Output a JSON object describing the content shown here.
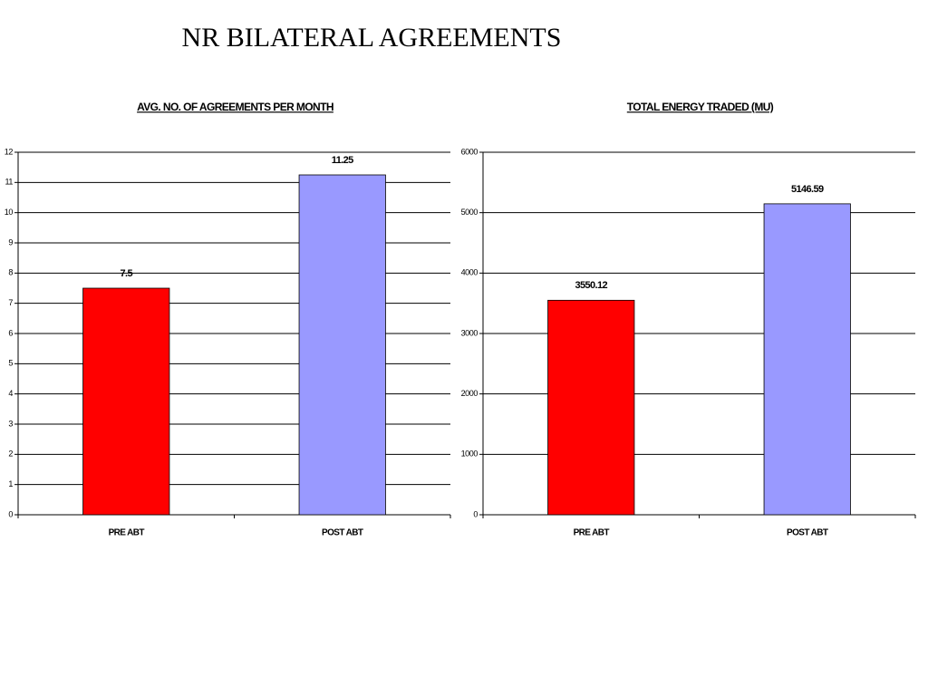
{
  "title": "NR BILATERAL AGREEMENTS",
  "chart_data": [
    {
      "type": "bar",
      "title": "AVG. NO. OF AGREEMENTS PER MONTH",
      "categories": [
        "PRE ABT",
        "POST ABT"
      ],
      "values": [
        7.5,
        11.25
      ],
      "colors": [
        "#ff0000",
        "#9999ff"
      ],
      "ylim": [
        0,
        12
      ],
      "yticks": [
        0,
        1,
        2,
        3,
        4,
        5,
        6,
        7,
        8,
        9,
        10,
        11,
        12
      ],
      "grid": true
    },
    {
      "type": "bar",
      "title": "TOTAL ENERGY TRADED (MU)",
      "categories": [
        "PRE ABT",
        "POST ABT"
      ],
      "values": [
        3550.12,
        5146.59
      ],
      "colors": [
        "#ff0000",
        "#9999ff"
      ],
      "ylim": [
        0,
        6000
      ],
      "yticks": [
        0,
        1000,
        2000,
        3000,
        4000,
        5000,
        6000
      ],
      "grid": true
    }
  ]
}
